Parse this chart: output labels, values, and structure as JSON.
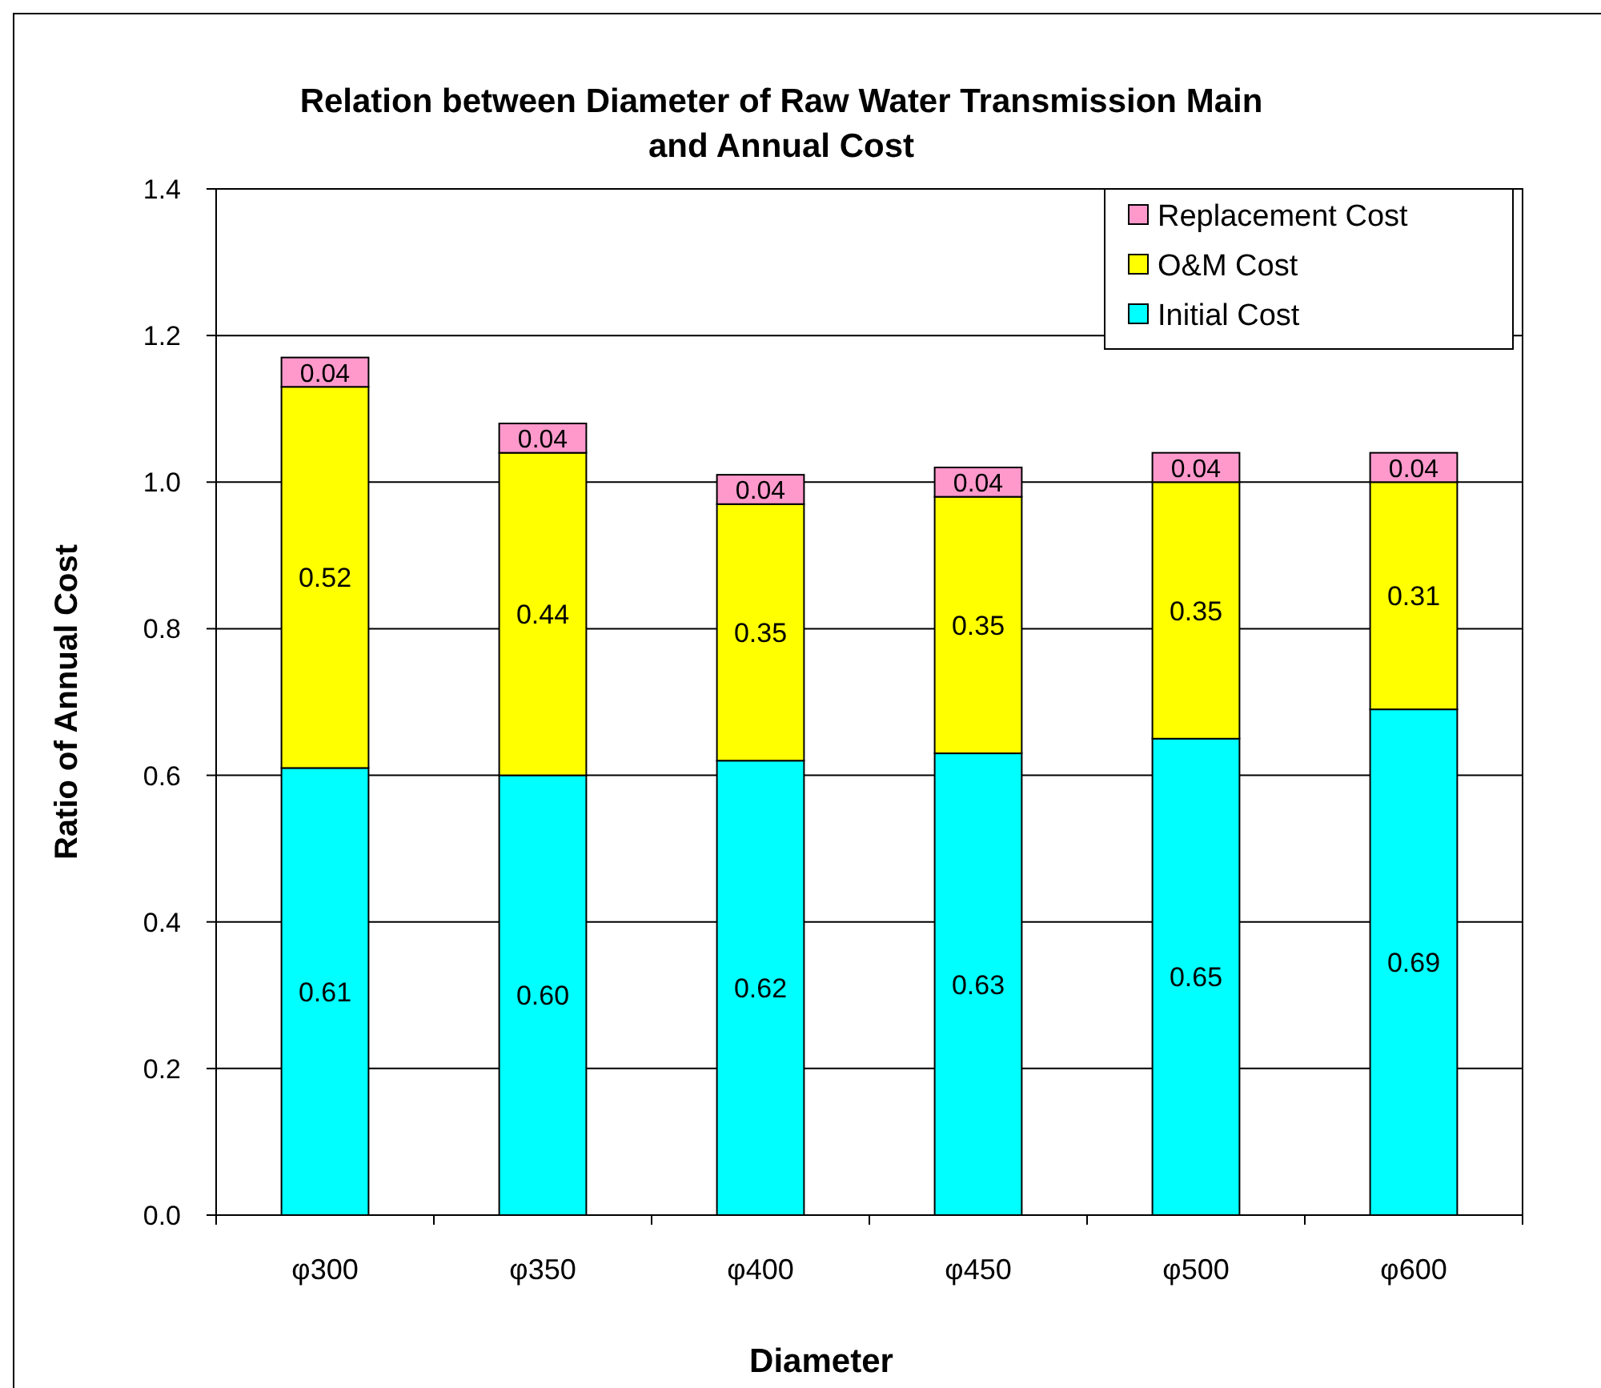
{
  "chart_data": {
    "type": "bar",
    "title": "Relation between Diameter of Raw Water Transmission Main\nand Annual Cost",
    "xlabel": "Diameter",
    "ylabel": "Ratio of Annual Cost",
    "categories": [
      "φ300",
      "φ350",
      "φ400",
      "φ450",
      "φ500",
      "φ600"
    ],
    "series": [
      {
        "name": "Initial Cost",
        "color": "#00ffff",
        "values": [
          0.61,
          0.6,
          0.62,
          0.63,
          0.65,
          0.69
        ],
        "value_labels": [
          "0.61",
          "0.60",
          "0.62",
          "0.63",
          "0.65",
          "0.69"
        ]
      },
      {
        "name": "O&M Cost",
        "color": "#ffff00",
        "values": [
          0.52,
          0.44,
          0.35,
          0.35,
          0.35,
          0.31
        ],
        "value_labels": [
          "0.52",
          "0.44",
          "0.35",
          "0.35",
          "0.35",
          "0.31"
        ]
      },
      {
        "name": "Replacement Cost",
        "color": "#ff99cc",
        "values": [
          0.04,
          0.04,
          0.04,
          0.04,
          0.04,
          0.04
        ],
        "value_labels": [
          "0.04",
          "0.04",
          "0.04",
          "0.04",
          "0.04",
          "0.04"
        ]
      }
    ],
    "stacked": true,
    "ylim": [
      0,
      1.4
    ],
    "yticks": [
      {
        "value": 0,
        "label": "0.0"
      },
      0.2,
      0.4,
      0.6,
      0.8,
      {
        "value": 1,
        "label": "1.0"
      },
      1.2,
      1.4
    ],
    "grid": "y",
    "legend": "top right"
  }
}
